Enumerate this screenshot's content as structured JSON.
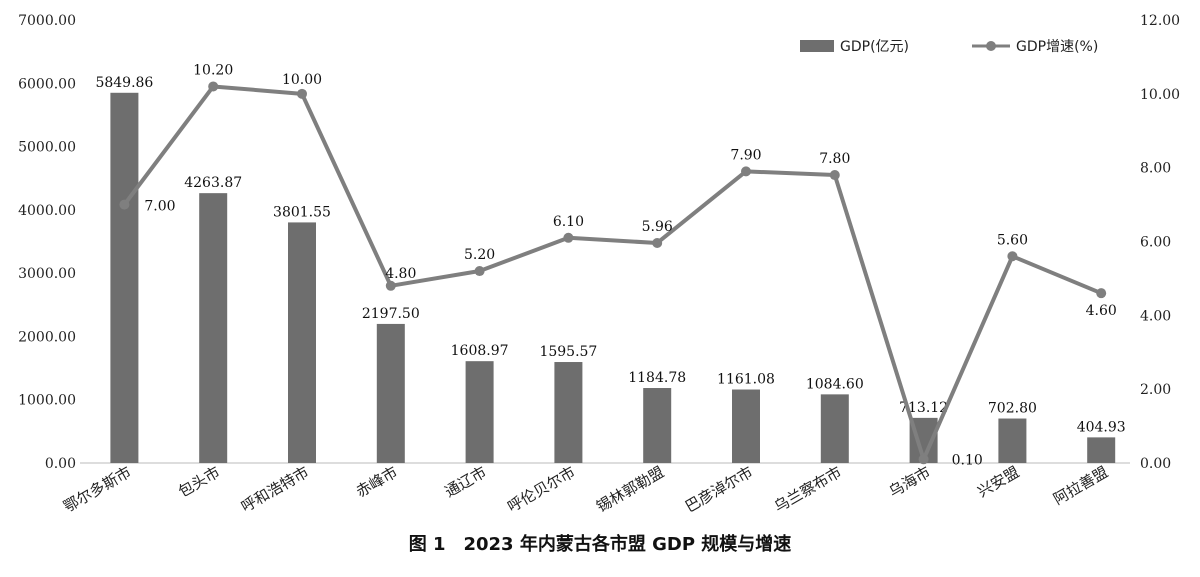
{
  "figure_caption": "图 1　2023 年内蒙古各市盟 GDP 规模与增速",
  "chart_data": {
    "type": "bar",
    "categories": [
      "鄂尔多斯市",
      "包头市",
      "呼和浩特市",
      "赤峰市",
      "通辽市",
      "呼伦贝尔市",
      "锡林郭勒盟",
      "巴彦淖尔市",
      "乌兰察布市",
      "乌海市",
      "兴安盟",
      "阿拉善盟"
    ],
    "series": [
      {
        "name": "GDP(亿元)",
        "type": "bar",
        "axis": "left",
        "values": [
          5849.86,
          4263.87,
          3801.55,
          2197.5,
          1608.97,
          1595.57,
          1184.78,
          1161.08,
          1084.6,
          713.12,
          702.8,
          404.93
        ],
        "labels": [
          "5849.86",
          "4263.87",
          "3801.55",
          "2197.50",
          "1608.97",
          "1595.57",
          "1184.78",
          "1161.08",
          "1084.60",
          "713.12",
          "702.80",
          "404.93"
        ]
      },
      {
        "name": "GDP增速(%)",
        "type": "line",
        "axis": "right",
        "values": [
          7.0,
          10.2,
          10.0,
          4.8,
          5.2,
          6.1,
          5.96,
          7.9,
          7.8,
          0.1,
          5.6,
          4.6
        ],
        "labels": [
          "7.00",
          "10.20",
          "10.00",
          "4.80",
          "5.20",
          "6.10",
          "5.96",
          "7.90",
          "7.80",
          "0.10",
          "5.60",
          "4.60"
        ]
      }
    ],
    "y_left": {
      "min": 0,
      "max": 7000,
      "ticks": [
        "0.00",
        "1000.00",
        "2000.00",
        "3000.00",
        "4000.00",
        "5000.00",
        "6000.00",
        "7000.00"
      ]
    },
    "y_right": {
      "min": 0,
      "max": 12,
      "ticks": [
        "0.00",
        "2.00",
        "4.00",
        "6.00",
        "8.00",
        "10.00",
        "12.00"
      ]
    },
    "grid": false,
    "legend_position": "top-right",
    "bar_color": "#6e6e6e",
    "line_color": "#7f7f7f"
  }
}
